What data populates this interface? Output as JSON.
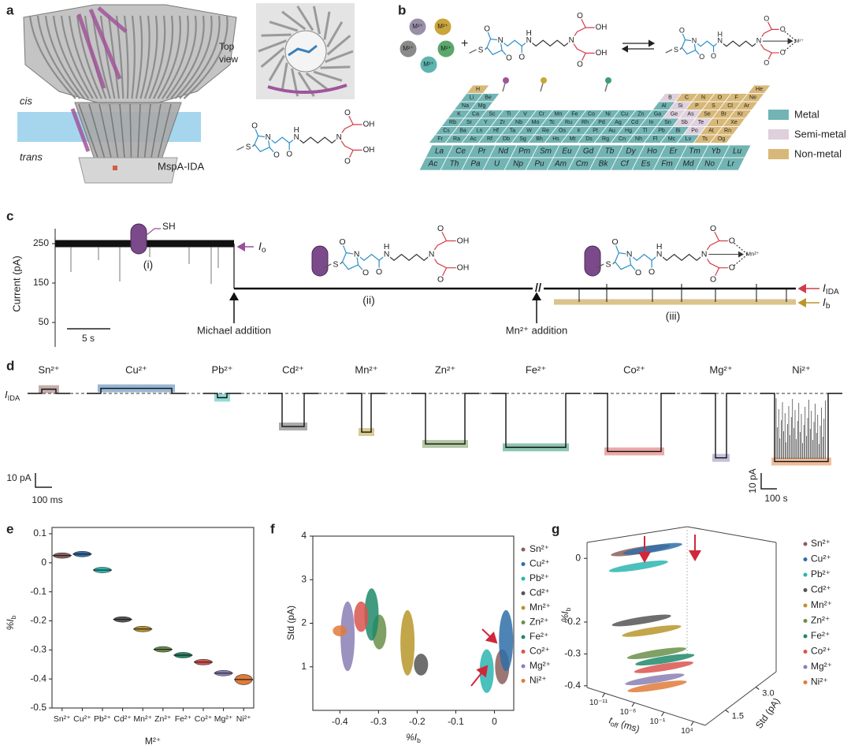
{
  "panel_labels": [
    "a",
    "b",
    "c",
    "d",
    "e",
    "f",
    "g"
  ],
  "panel_a": {
    "cis": "cis",
    "trans": "trans",
    "name": "MspA-IDA",
    "top_view": [
      "Top",
      "view"
    ]
  },
  "chem": {
    "S": "S",
    "O": "O",
    "N": "N",
    "H": "H",
    "OH": "OH",
    "SH": "SH",
    "M": "M²⁺",
    "Mn": "Mn²⁺",
    "plus": "+"
  },
  "periodic": {
    "rows": [
      [
        "H",
        null,
        null,
        null,
        null,
        null,
        null,
        null,
        null,
        null,
        null,
        null,
        null,
        null,
        null,
        null,
        null,
        "He"
      ],
      [
        "Li",
        "Be",
        null,
        null,
        null,
        null,
        null,
        null,
        null,
        null,
        null,
        null,
        "B",
        "C",
        "N",
        "O",
        "F",
        "Ne"
      ],
      [
        "Na",
        "Mg",
        null,
        null,
        null,
        null,
        null,
        null,
        null,
        null,
        null,
        null,
        "Al",
        "Si",
        "P",
        "S",
        "Cl",
        "Ar"
      ],
      [
        "K",
        "Ca",
        "Sc",
        "Ti",
        "V",
        "Cr",
        "Mn",
        "Fe",
        "Co",
        "Ni",
        "Cu",
        "Zn",
        "Ga",
        "Ge",
        "As",
        "Se",
        "Br",
        "Kr"
      ],
      [
        "Rb",
        "Sr",
        "Y",
        "Zr",
        "Nb",
        "Mo",
        "Tc",
        "Ru",
        "Rh",
        "Pd",
        "Ag",
        "Cd",
        "In",
        "Sn",
        "Sb",
        "Te",
        "I",
        "Xe"
      ],
      [
        "Cs",
        "Ba",
        "Ln",
        "Hf",
        "Ta",
        "W",
        "Re",
        "Os",
        "Ir",
        "Pt",
        "Au",
        "Hg",
        "Tl",
        "Pb",
        "Bi",
        "Po",
        "At",
        "Rn"
      ],
      [
        "Fr",
        "Ra",
        "Ac",
        "Rf",
        "Db",
        "Sg",
        "Bh",
        "Hs",
        "Mt",
        "Ds",
        "Rg",
        "Cn",
        "Nh",
        "Fl",
        "Mc",
        "Lv",
        "Ts",
        "Og"
      ]
    ],
    "lanthanides": [
      "La",
      "Ce",
      "Pr",
      "Nd",
      "Pm",
      "Sm",
      "Eu",
      "Gd",
      "Tb",
      "Dy",
      "Ho",
      "Er",
      "Tm",
      "Yb",
      "Lu"
    ],
    "actinides": [
      "Ac",
      "Th",
      "Pa",
      "U",
      "Np",
      "Pu",
      "Am",
      "Cm",
      "Bk",
      "Cf",
      "Es",
      "Fm",
      "Md",
      "No",
      "Lr"
    ],
    "semi_metal": [
      "B",
      "Si",
      "Ge",
      "As",
      "Sb",
      "Te",
      "Po"
    ],
    "non_metal": [
      "H",
      "He",
      "C",
      "N",
      "O",
      "F",
      "Ne",
      "P",
      "S",
      "Cl",
      "Ar",
      "Se",
      "Br",
      "Kr",
      "I",
      "Xe",
      "At",
      "Rn",
      "Ts",
      "Og"
    ],
    "legend": [
      {
        "name": "Metal",
        "color": "#72b4b4"
      },
      {
        "name": "Semi-metal",
        "color": "#ded0dd"
      },
      {
        "name": "Non-metal",
        "color": "#d8b878"
      }
    ]
  },
  "panel_c": {
    "ylabel": "Current (pA)",
    "ylim": [
      10,
      290
    ],
    "yticks": [
      50,
      150,
      250
    ],
    "scale": "5 s",
    "states": [
      "(i)",
      "(ii)",
      "(iii)"
    ],
    "michael": "Michael addition",
    "mn_addition": "Mn²⁺ addition",
    "break": "//",
    "levels": {
      "I0": 250,
      "IIDA": 136,
      "Ib": 102
    },
    "level_labels": {
      "I0": {
        "main": "I",
        "sub": "o"
      },
      "IIDA": {
        "main": "I",
        "sub": "IDA"
      },
      "Ib": {
        "main": "I",
        "sub": "b"
      }
    }
  },
  "panel_d": {
    "scale_pa": "10 pA",
    "scale_ms": "100 ms",
    "scale_s": "100 s"
  },
  "chart_data": [
    {
      "type": "violin",
      "label": "e",
      "categories": [
        "Sn²⁺",
        "Cu²⁺",
        "Pb²⁺",
        "Cd²⁺",
        "Mn²⁺",
        "Zn²⁺",
        "Fe²⁺",
        "Co²⁺",
        "Mg²⁺",
        "Ni²⁺"
      ],
      "values": [
        0.025,
        0.03,
        -0.025,
        -0.195,
        -0.228,
        -0.298,
        -0.318,
        -0.342,
        -0.38,
        -0.402
      ],
      "colors": [
        "#8b5e5a",
        "#2f6ea8",
        "#2bb5b0",
        "#555555",
        "#b8962a",
        "#6a8f4a",
        "#1e8a6a",
        "#d9534f",
        "#8a7fb5",
        "#e07b39"
      ],
      "ylim": [
        -0.5,
        0.1
      ],
      "yticks": [
        -0.5,
        -0.4,
        -0.3,
        -0.2,
        -0.1,
        0,
        0.1
      ],
      "xlabel": "M²⁺",
      "ylabel": {
        "main": "%I",
        "sub": "b"
      }
    },
    {
      "type": "scatter",
      "label": "f",
      "xlim": [
        -0.47,
        0.05
      ],
      "xticks": [
        -0.4,
        -0.3,
        -0.2,
        -0.1,
        0
      ],
      "ylim": [
        0,
        4
      ],
      "yticks": [
        1,
        2,
        3,
        4
      ],
      "xlabel": {
        "main": "%I",
        "sub": "b"
      },
      "ylabel": "Std (pA)",
      "series": [
        {
          "name": "Sn²⁺",
          "color": "#8b5e5a",
          "x": 0.02,
          "y_range": [
            0.6,
            1.4
          ]
        },
        {
          "name": "Cu²⁺",
          "color": "#2f6ea8",
          "x": 0.03,
          "y_range": [
            0.9,
            2.3
          ]
        },
        {
          "name": "Pb²⁺",
          "color": "#2bb5b0",
          "x": -0.02,
          "y_range": [
            0.4,
            1.4
          ]
        },
        {
          "name": "Cd²⁺",
          "color": "#555555",
          "x": -0.19,
          "y_range": [
            0.8,
            1.3
          ]
        },
        {
          "name": "Mn²⁺",
          "color": "#b8962a",
          "x": -0.225,
          "y_range": [
            0.8,
            2.3
          ]
        },
        {
          "name": "Zn²⁺",
          "color": "#6a8f4a",
          "x": -0.298,
          "y_range": [
            1.4,
            2.2
          ]
        },
        {
          "name": "Fe²⁺",
          "color": "#1e8a6a",
          "x": -0.318,
          "y_range": [
            1.6,
            2.8
          ]
        },
        {
          "name": "Co²⁺",
          "color": "#d9534f",
          "x": -0.345,
          "y_range": [
            1.8,
            2.5
          ]
        },
        {
          "name": "Mg²⁺",
          "color": "#8a7fb5",
          "x": -0.38,
          "y_range": [
            0.9,
            2.5
          ]
        },
        {
          "name": "Ni²⁺",
          "color": "#e07b39",
          "x": -0.4,
          "y_range": [
            1.7,
            1.95
          ]
        }
      ]
    },
    {
      "type": "scatter3d",
      "label": "g",
      "zlabel": {
        "main": "%I",
        "sub": "b"
      },
      "xlabel": {
        "main": "t",
        "sub": "off",
        "tail": " (ms)"
      },
      "ylabel": "Std (pA)",
      "xscale": "log",
      "xlim": [
        1e-14,
        1000000.0
      ],
      "xticks": [
        {
          "value": 1e-11,
          "label": "10⁻¹¹"
        },
        {
          "value": 1e-06,
          "label": "10⁻⁶"
        },
        {
          "value": 0.1,
          "label": "10⁻¹"
        },
        {
          "value": 10000,
          "label": "10⁴"
        }
      ],
      "ylim": [
        0.5,
        4
      ],
      "yticks": [
        1.5,
        {
          "value": 3,
          "label": "3.0"
        }
      ],
      "zlim": [
        -0.45,
        0.05
      ],
      "zticks": [
        0,
        -0.2,
        -0.3,
        -0.4
      ],
      "series": [
        {
          "name": "Sn²⁺",
          "color": "#8b5e5a"
        },
        {
          "name": "Cu²⁺",
          "color": "#2f6ea8"
        },
        {
          "name": "Pb²⁺",
          "color": "#2bb5b0"
        },
        {
          "name": "Cd²⁺",
          "color": "#555555"
        },
        {
          "name": "Mn²⁺",
          "color": "#b8962a"
        },
        {
          "name": "Zn²⁺",
          "color": "#6a8f4a"
        },
        {
          "name": "Fe²⁺",
          "color": "#1e8a6a"
        },
        {
          "name": "Co²⁺",
          "color": "#d9534f"
        },
        {
          "name": "Mg²⁺",
          "color": "#8a7fb5"
        },
        {
          "name": "Ni²⁺",
          "color": "#e07b39"
        }
      ]
    }
  ]
}
